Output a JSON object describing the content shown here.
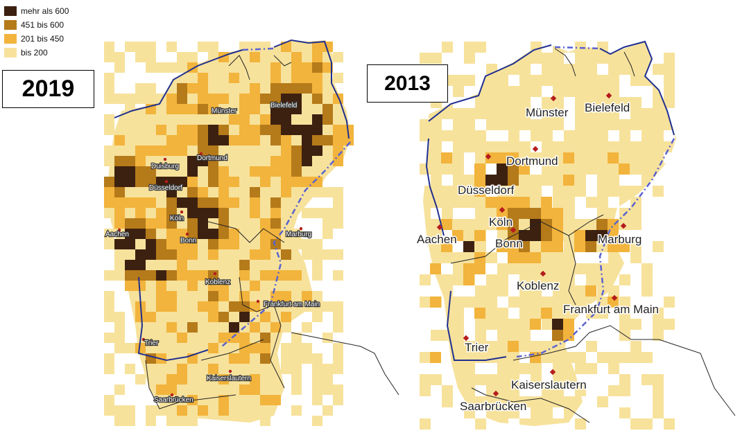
{
  "legend": {
    "items": [
      {
        "label": "mehr als 600",
        "color": "#3d2110"
      },
      {
        "label": "451 bis 600",
        "color": "#b57a1a"
      },
      {
        "label": "201 bis 450",
        "color": "#f2b43c"
      },
      {
        "label": "bis 200",
        "color": "#f7e29c"
      }
    ]
  },
  "maps": [
    {
      "year": "2019",
      "cities": [
        {
          "name": "Münster"
        },
        {
          "name": "Bielefeld"
        },
        {
          "name": "Duisburg"
        },
        {
          "name": "Dortmund"
        },
        {
          "name": "Düsseldorf"
        },
        {
          "name": "Köln"
        },
        {
          "name": "Aachen"
        },
        {
          "name": "Bonn"
        },
        {
          "name": "Marburg"
        },
        {
          "name": "Koblenz"
        },
        {
          "name": "Frankfurt am Main"
        },
        {
          "name": "Trier"
        },
        {
          "name": "Kaiserslautern"
        },
        {
          "name": "Saarbrücken"
        }
      ]
    },
    {
      "year": "2013",
      "cities": [
        {
          "name": "Münster"
        },
        {
          "name": "Bielefeld"
        },
        {
          "name": "Dortmund"
        },
        {
          "name": "Düsseldorf"
        },
        {
          "name": "Köln"
        },
        {
          "name": "Aachen"
        },
        {
          "name": "Bonn"
        },
        {
          "name": "Marburg"
        },
        {
          "name": "Koblenz"
        },
        {
          "name": "Frankfurt am Main"
        },
        {
          "name": "Trier"
        },
        {
          "name": "Kaiserslautern"
        },
        {
          "name": "Saarbrücken"
        }
      ]
    }
  ]
}
